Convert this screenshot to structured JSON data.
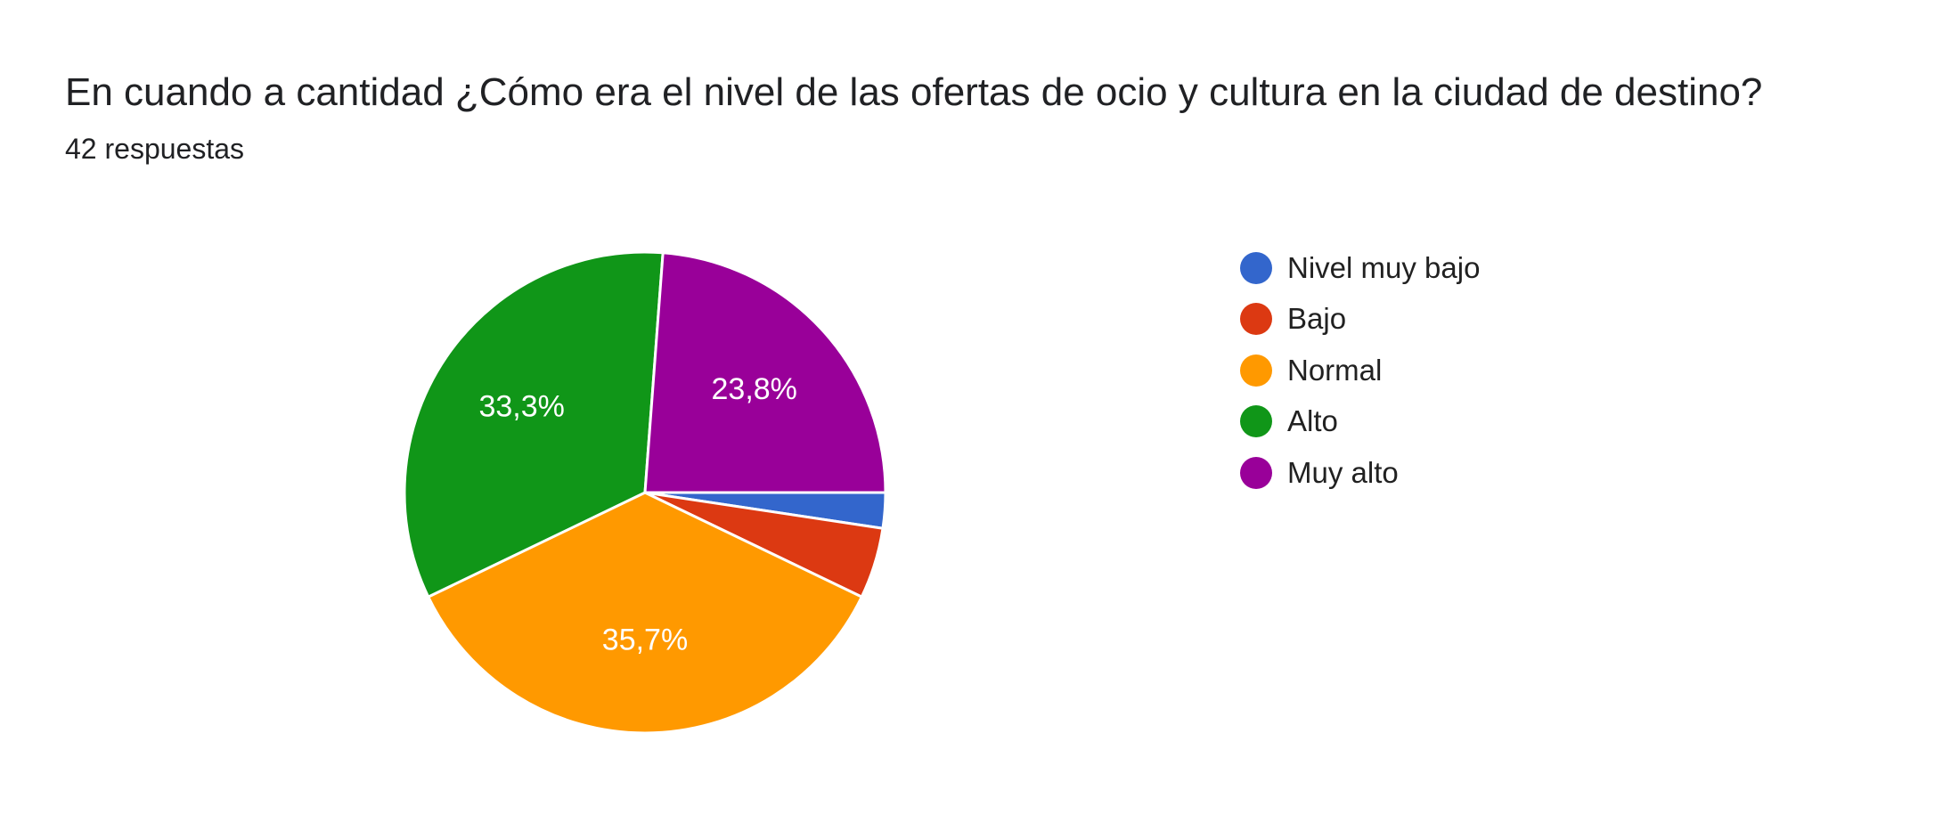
{
  "question": {
    "title": "En cuando a cantidad ¿Cómo era el nivel de las ofertas de ocio y cultura en la ciudad de destino?",
    "response_count": "42 respuestas"
  },
  "chart_data": {
    "type": "pie",
    "title": "En cuando a cantidad ¿Cómo era el nivel de las ofertas de ocio y cultura en la ciudad de destino?",
    "total": 42,
    "slices": [
      {
        "name": "Nivel muy bajo",
        "count": 1,
        "percent": 2.4,
        "label": "",
        "color": "#3366cc"
      },
      {
        "name": "Bajo",
        "count": 2,
        "percent": 4.8,
        "label": "",
        "color": "#dc3912"
      },
      {
        "name": "Normal",
        "count": 15,
        "percent": 35.7,
        "label": "35,7%",
        "color": "#ff9900"
      },
      {
        "name": "Alto",
        "count": 14,
        "percent": 33.3,
        "label": "33,3%",
        "color": "#109618"
      },
      {
        "name": "Muy alto",
        "count": 10,
        "percent": 23.8,
        "label": "23,8%",
        "color": "#990099"
      }
    ],
    "legend_position": "right"
  }
}
